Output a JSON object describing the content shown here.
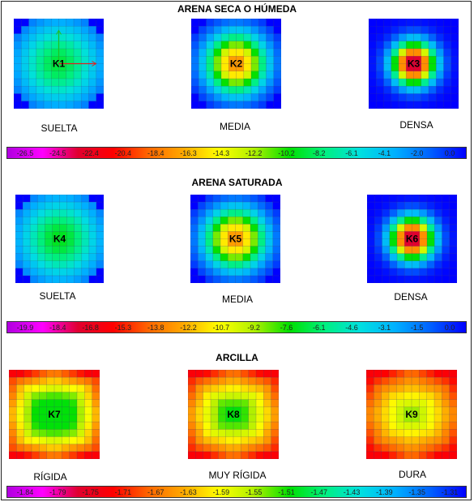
{
  "sections": [
    {
      "title": "ARENA SECA O HÚMEDA",
      "panels": [
        {
          "label": "K1",
          "caption": "SUELTA",
          "style": "sand",
          "intensity": 0.35,
          "spread": 0.75
        },
        {
          "label": "K2",
          "caption": "MEDIA",
          "style": "sand",
          "intensity": 0.65,
          "spread": 0.5
        },
        {
          "label": "K3",
          "caption": "DENSA",
          "style": "sand",
          "intensity": 0.9,
          "spread": 0.34
        }
      ],
      "scale": [
        "-26.5",
        "-24.5",
        "-22.4",
        "-20.4",
        "-18.4",
        "-16.3",
        "-14.3",
        "-12.2",
        "-10.2",
        "-8.2",
        "-6.1",
        "-4.1",
        "-2.0",
        "0.0"
      ]
    },
    {
      "title": "ARENA SATURADA",
      "panels": [
        {
          "label": "K4",
          "caption": "SUELTA",
          "style": "sand",
          "intensity": 0.37,
          "spread": 0.75
        },
        {
          "label": "K5",
          "caption": "MEDIA",
          "style": "sand",
          "intensity": 0.65,
          "spread": 0.5
        },
        {
          "label": "K6",
          "caption": "DENSA",
          "style": "sand",
          "intensity": 0.9,
          "spread": 0.34
        }
      ],
      "scale": [
        "-19.9",
        "-18.4",
        "-16.8",
        "-15.3",
        "-13.8",
        "-12.2",
        "-10.7",
        "-9.2",
        "-7.6",
        "-6.1",
        "-4.6",
        "-3.1",
        "-1.5",
        "0.0"
      ]
    },
    {
      "title": "ARCILLA",
      "panels": [
        {
          "label": "K7",
          "caption": "RÍGIDA",
          "style": "clay",
          "intensity": 0.55,
          "spread": 0.5
        },
        {
          "label": "K8",
          "caption": "MUY RÍGIDA",
          "style": "clay",
          "intensity": 0.42,
          "spread": 0.5
        },
        {
          "label": "K9",
          "caption": "DURA",
          "style": "clay",
          "intensity": 0.3,
          "spread": 0.5
        }
      ],
      "scale": [
        "-1.84",
        "-1.79",
        "-1.75",
        "-1.71",
        "-1.67",
        "-1.63",
        "-1.59",
        "-1.55",
        "-1.51",
        "-1.47",
        "-1.43",
        "-1.39",
        "-1.35",
        "-1.31"
      ]
    }
  ],
  "colormap": [
    "#b000e0",
    "#ff00ff",
    "#e00030",
    "#ff0000",
    "#ff6600",
    "#ffaa00",
    "#ffff00",
    "#b0f000",
    "#00e000",
    "#00f080",
    "#00e0e0",
    "#00b0ff",
    "#0060ff",
    "#0000ff"
  ],
  "axis_markers": {
    "y_color": "#20c020",
    "x_color": "#e02020"
  }
}
